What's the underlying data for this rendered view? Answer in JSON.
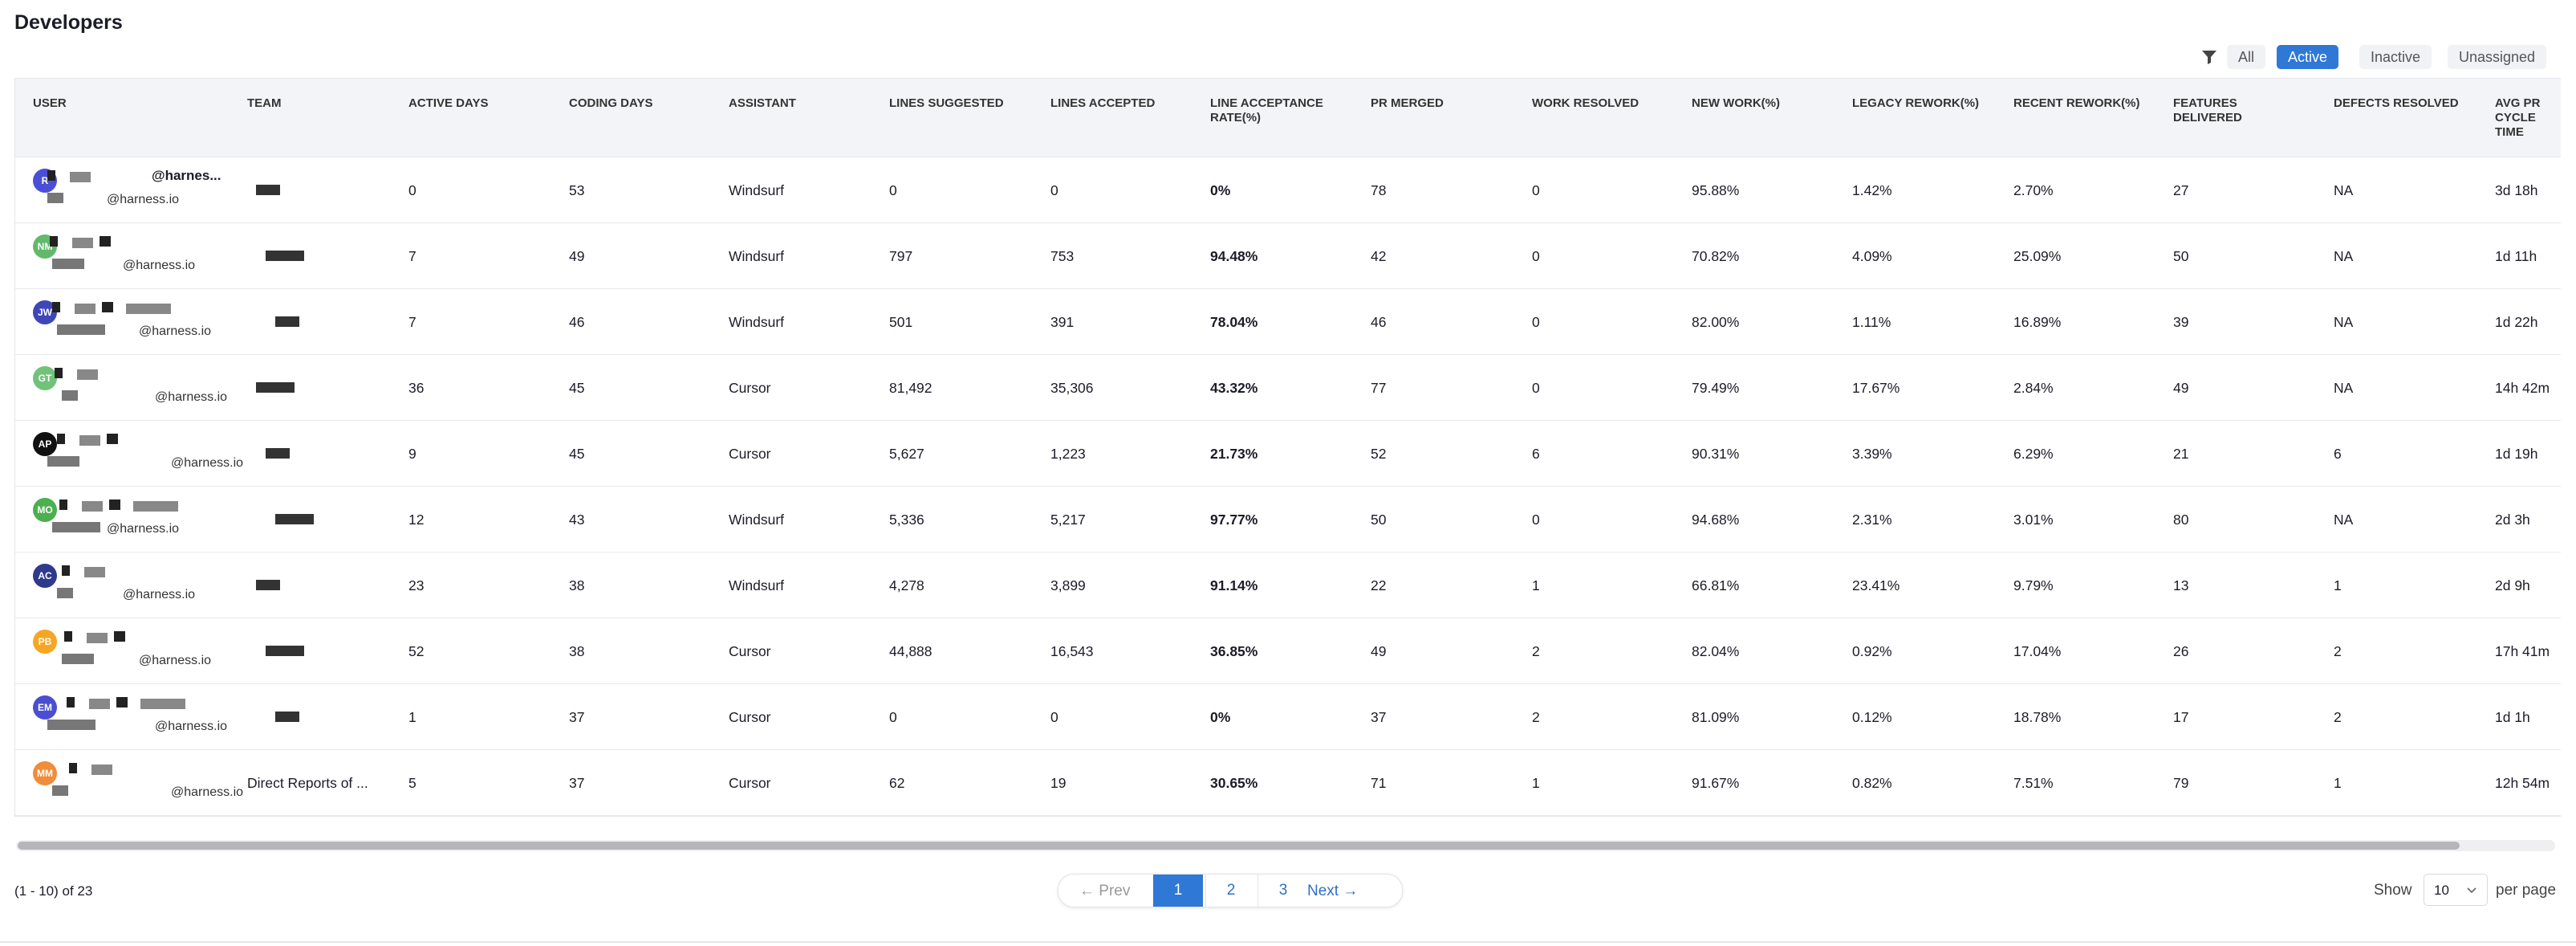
{
  "header": {
    "title": "Developers"
  },
  "filters": {
    "items": [
      "All",
      "Active",
      "Inactive",
      "Unassigned"
    ],
    "active": 1
  },
  "table": {
    "columns": [
      "USER",
      "TEAM",
      "ACTIVE DAYS",
      "CODING DAYS",
      "ASSISTANT",
      "LINES SUGGESTED",
      "LINES ACCEPTED",
      "LINE ACCEPTANCE RATE(%)",
      "PR MERGED",
      "WORK RESOLVED",
      "NEW WORK(%)",
      "LEGACY REWORK(%)",
      "RECENT REWORK(%)",
      "FEATURES DELIVERED",
      "DEFECTS RESOLVED",
      "AVG PR CYCLE TIME"
    ],
    "rows": [
      {
        "user": {
          "initials": "R",
          "color": "#4b4fd6",
          "name": "@harnes...",
          "email": "@harness.io"
        },
        "values": [
          "0",
          "53",
          "Windsurf",
          "0",
          "0",
          "0%",
          "78",
          "0",
          "95.88%",
          "1.42%",
          "2.70%",
          "27",
          "NA",
          "3d 18h"
        ]
      },
      {
        "user": {
          "initials": "NM",
          "color": "#62b96a",
          "email": "@harness.io"
        },
        "values": [
          "7",
          "49",
          "Windsurf",
          "797",
          "753",
          "94.48%",
          "42",
          "0",
          "70.82%",
          "4.09%",
          "25.09%",
          "50",
          "NA",
          "1d 11h"
        ]
      },
      {
        "user": {
          "initials": "JW",
          "color": "#3e46b8",
          "email": "@harness.io"
        },
        "values": [
          "7",
          "46",
          "Windsurf",
          "501",
          "391",
          "78.04%",
          "46",
          "0",
          "82.00%",
          "1.11%",
          "16.89%",
          "39",
          "NA",
          "1d 22h"
        ]
      },
      {
        "user": {
          "initials": "GT",
          "color": "#72c27a",
          "email": "@harness.io"
        },
        "values": [
          "36",
          "45",
          "Cursor",
          "81,492",
          "35,306",
          "43.32%",
          "77",
          "0",
          "79.49%",
          "17.67%",
          "2.84%",
          "49",
          "NA",
          "14h 42m"
        ]
      },
      {
        "user": {
          "initials": "AP",
          "color": "#111111",
          "email": "@harness.io"
        },
        "values": [
          "9",
          "45",
          "Cursor",
          "5,627",
          "1,223",
          "21.73%",
          "52",
          "6",
          "90.31%",
          "3.39%",
          "6.29%",
          "21",
          "6",
          "1d 19h"
        ]
      },
      {
        "user": {
          "initials": "MO",
          "color": "#4caf50",
          "email": "@harness.io"
        },
        "values": [
          "12",
          "43",
          "Windsurf",
          "5,336",
          "5,217",
          "97.77%",
          "50",
          "0",
          "94.68%",
          "2.31%",
          "3.01%",
          "80",
          "NA",
          "2d 3h"
        ]
      },
      {
        "user": {
          "initials": "AC",
          "color": "#2e3a8c",
          "email": "@harness.io"
        },
        "values": [
          "23",
          "38",
          "Windsurf",
          "4,278",
          "3,899",
          "91.14%",
          "22",
          "1",
          "66.81%",
          "23.41%",
          "9.79%",
          "13",
          "1",
          "2d 9h"
        ]
      },
      {
        "user": {
          "initials": "PB",
          "color": "#f5a623",
          "email": "@harness.io"
        },
        "values": [
          "52",
          "38",
          "Cursor",
          "44,888",
          "16,543",
          "36.85%",
          "49",
          "2",
          "82.04%",
          "0.92%",
          "17.04%",
          "26",
          "2",
          "17h 41m"
        ]
      },
      {
        "user": {
          "initials": "EM",
          "color": "#4a4fd1",
          "email": "@harness.io"
        },
        "values": [
          "1",
          "37",
          "Cursor",
          "0",
          "0",
          "0%",
          "37",
          "2",
          "81.09%",
          "0.12%",
          "18.78%",
          "17",
          "2",
          "1d 1h"
        ]
      },
      {
        "user": {
          "initials": "MM",
          "color": "#f08c3a",
          "email": "@harness.io"
        },
        "team": "Direct Reports of ...",
        "values": [
          "5",
          "37",
          "Cursor",
          "62",
          "19",
          "30.65%",
          "71",
          "1",
          "91.67%",
          "0.82%",
          "7.51%",
          "79",
          "1",
          "12h 54m"
        ]
      }
    ]
  },
  "pagination": {
    "summary": "(1 - 10) of 23",
    "prev": "← Prev",
    "pages": [
      "1",
      "2",
      "3"
    ],
    "current": 0,
    "next": "Next →",
    "show": "Show",
    "page_size": "10",
    "per_page": "per page"
  }
}
